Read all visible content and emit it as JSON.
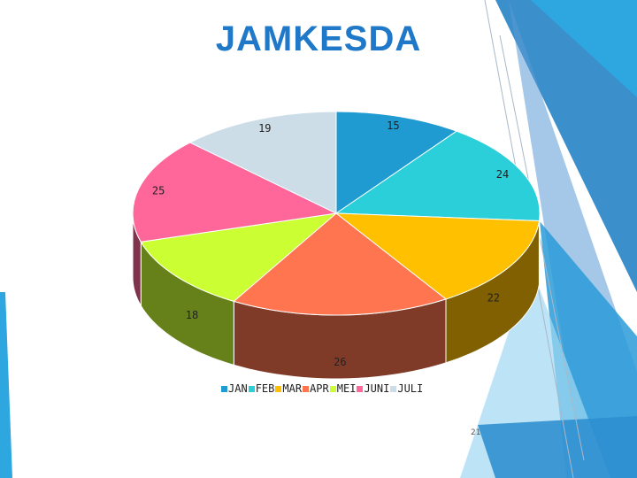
{
  "slide": {
    "title": "JAMKESDA",
    "title_color": "#1f78c8",
    "page_number": "21",
    "accent_colors": [
      "#2e8fcf",
      "#5b9bd5",
      "#3cb7e6",
      "#bfe3f5"
    ]
  },
  "chart_data": {
    "type": "pie",
    "title": "",
    "categories": [
      "JAN",
      "FEB",
      "MAR",
      "APR",
      "MEI",
      "JUNI",
      "JULI"
    ],
    "values": [
      15,
      24,
      22,
      26,
      18,
      25,
      19
    ],
    "colors": [
      "#1f9bd1",
      "#2acfd9",
      "#ffc000",
      "#ff7550",
      "#ccff33",
      "#ff6699",
      "#ccdde8"
    ],
    "legend_position": "bottom",
    "style": "3d"
  }
}
